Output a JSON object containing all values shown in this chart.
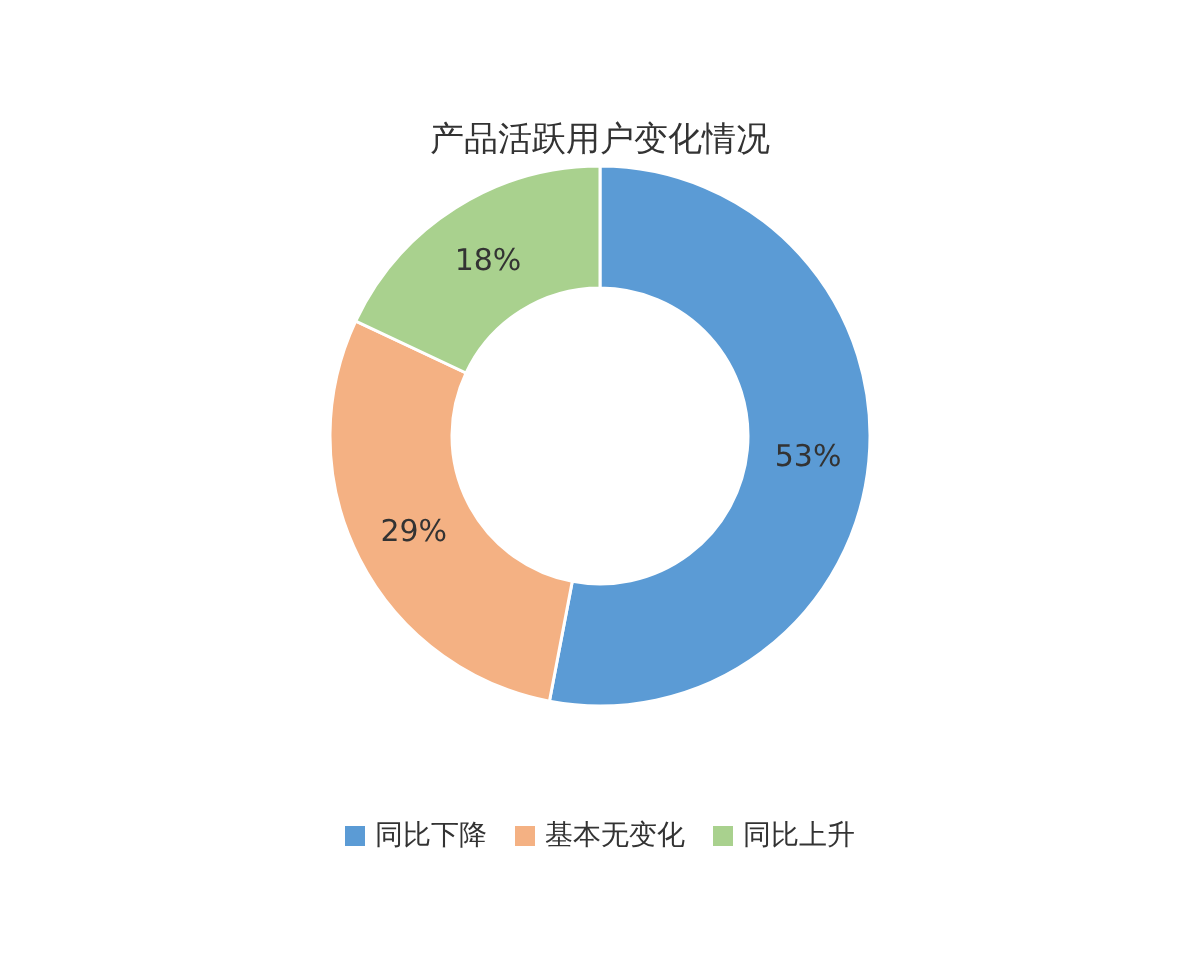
{
  "chart_data": {
    "type": "donut",
    "title": "产品活跃用户变化情况",
    "categories": [
      "同比下降",
      "基本无变化",
      "同比上升"
    ],
    "values": [
      53,
      29,
      18
    ],
    "colors": [
      "#5b9bd5",
      "#f4b183",
      "#a9d18e"
    ],
    "value_labels": [
      "53%",
      "29%",
      "18%"
    ],
    "legend": "bottom"
  }
}
